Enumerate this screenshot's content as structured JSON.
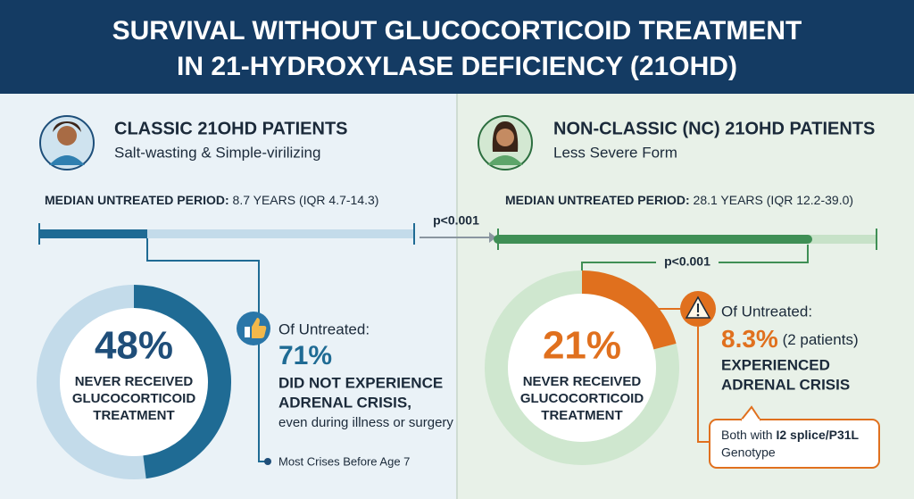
{
  "header": {
    "title": [
      "SURVIVAL WITHOUT GLUCOCORTICOID TREATMENT",
      "IN 21-HYDROXYLASE DEFICIENCY (21OHD)"
    ]
  },
  "left": {
    "heading": "CLASSIC 21OHD PATIENTS",
    "subheading": "Salt-wasting & Simple-virilizing",
    "median_label": "MEDIAN UNTREATED PERIOD:",
    "median_value": "8.7 YEARS (IQR 4.7-14.3)",
    "donut": {
      "value": 48,
      "label": "48%"
    },
    "donut_caption": [
      "NEVER RECEIVED",
      "GLUCOCORTICOID",
      "TREATMENT"
    ],
    "of_untreated": "Of Untreated:",
    "stat": "71%",
    "stat_text": [
      "DID NOT EXPERIENCE",
      "ADRENAL CRISIS,"
    ],
    "stat_note": "even during illness or surgery",
    "footnote": "Most Crises Before Age 7"
  },
  "comparison": "p<0.001",
  "right": {
    "heading": "NON-CLASSIC (NC) 21OHD PATIENTS",
    "subheading": "Less Severe Form",
    "median_label": "MEDIAN UNTREATED PERIOD:",
    "median_value": "28.1 YEARS (IQR 12.2-39.0)",
    "bracket_label": "p<0.001",
    "donut": {
      "value": 21,
      "label": "21%"
    },
    "donut_caption": [
      "NEVER RECEIVED",
      "GLUCOCORTICOID",
      "TREATMENT"
    ],
    "of_untreated": "Of Untreated:",
    "stat": "8.3%",
    "stat_suffix": "(2 patients)",
    "stat_text": [
      "EXPERIENCED",
      "ADRENAL CRISIS"
    ],
    "callout": {
      "prefix": "Both with",
      "genotype": "I2 splice/P31L",
      "suffix": "Genotype"
    }
  }
}
